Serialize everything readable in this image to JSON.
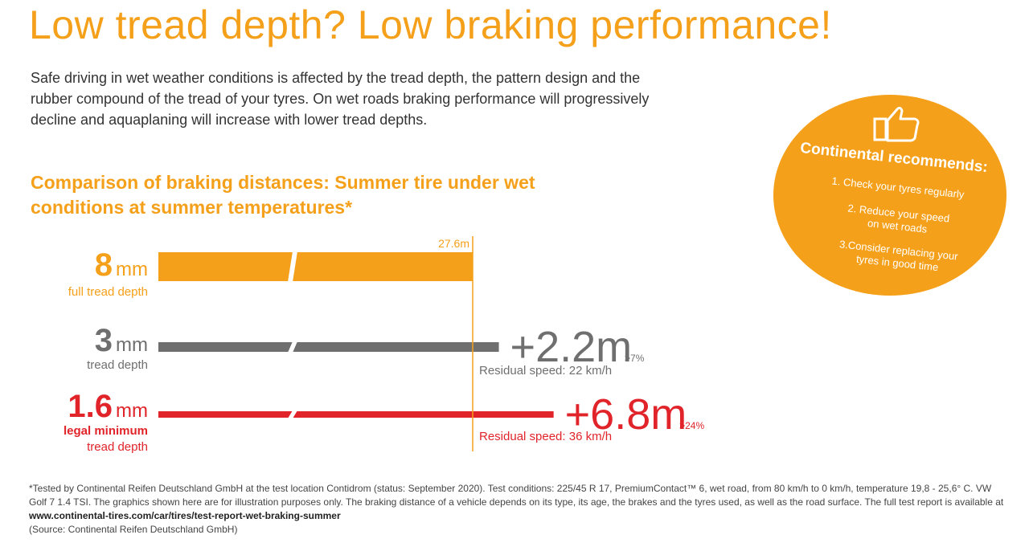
{
  "title": "Low tread depth? Low braking performance!",
  "intro": "Safe driving in wet weather conditions is affected by the tread depth, the pattern design and the rubber compound of the tread of your tyres. On wet roads braking performance will progressively decline and aquaplaning will increase with lower tread depths.",
  "subtitle": "Comparison of braking distances: Summer tire under wet conditions at summer temperatures*",
  "recommend": {
    "title": "Continental recommends:",
    "items": [
      "1. Check your tyres regularly",
      "2. Reduce your speed\non wet roads",
      "3.Consider replacing your\ntyres in good time"
    ],
    "icon": "thumbs-up-icon"
  },
  "colors": {
    "accent": "#f5a01a",
    "gray": "#6f6f6f",
    "red": "#e0242a"
  },
  "chart_data": {
    "type": "bar",
    "orientation": "horizontal",
    "reference_label": "27.6m",
    "categories": [
      "8 mm",
      "3 mm",
      "1.6 mm"
    ],
    "series": [
      {
        "tread_mm": "8",
        "unit": "mm",
        "sublabel": "full tread depth",
        "sublabel2": "",
        "extra_m": 0,
        "extra_label": "",
        "pct_label": "",
        "residual": "",
        "color": "#f5a01a"
      },
      {
        "tread_mm": "3",
        "unit": "mm",
        "sublabel": "tread depth",
        "sublabel2": "",
        "extra_m": 2.2,
        "extra_label": "+2.2m",
        "pct_label": ">7%",
        "residual": "Residual speed: 22 km/h",
        "color": "#6f6f6f"
      },
      {
        "tread_mm": "1.6",
        "unit": "mm",
        "sublabel": "legal minimum",
        "sublabel2": "tread depth",
        "extra_m": 6.8,
        "extra_label": "+6.8m",
        "pct_label": ">24%",
        "residual": "Residual speed: 36 km/h",
        "color": "#e0242a"
      }
    ],
    "base_m": 27.6
  },
  "footnote": {
    "text": "*Tested by Continental Reifen Deutschland GmbH at the test location Contidrom (status: September 2020). Test conditions: 225/45 R 17, PremiumContact™ 6, wet road, from 80 km/h to 0 km/h, temperature 19,8 - 25,6° C. VW Golf 7 1.4 TSI. The graphics shown here are for illustration purposes only. The braking distance of a vehicle depends on its type, its age, the brakes and the tyres used, as well as the road surface. The full test report is available at ",
    "link": "www.continental-tires.com/car/tires/test-report-wet-braking-summer",
    "source": "(Source: Continental Reifen Deutschland GmbH)"
  }
}
